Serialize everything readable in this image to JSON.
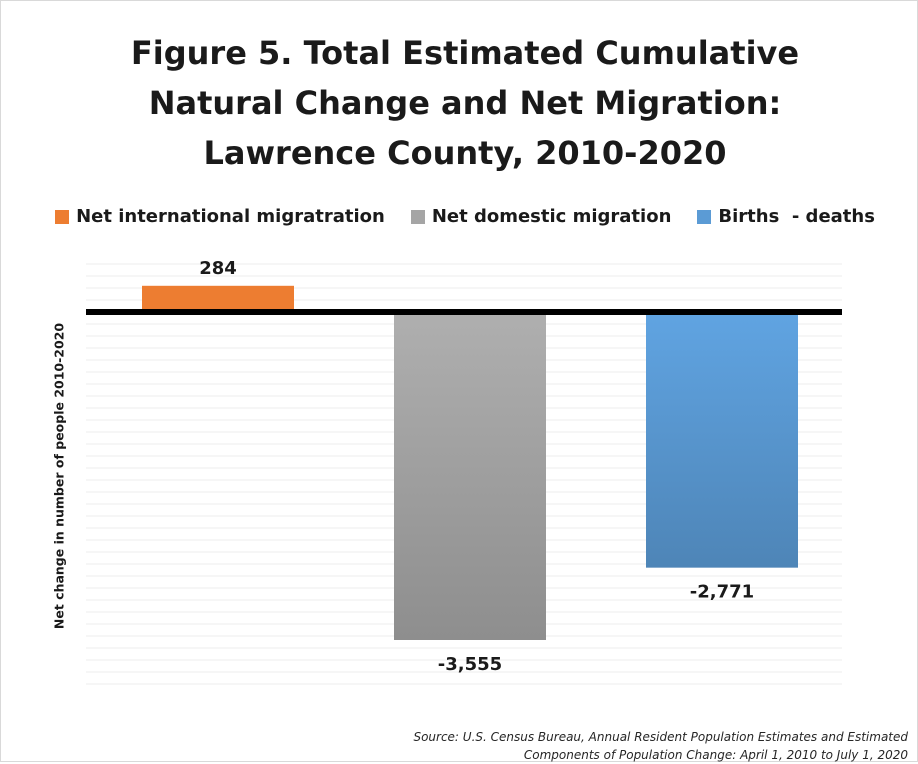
{
  "chart_data": {
    "type": "bar",
    "title_lines": [
      "Figure 5. Total Estimated Cumulative",
      "Natural Change and Net Migration:",
      "Lawrence County, 2010-2020"
    ],
    "ylabel": "Net change in number of people 2010-2020",
    "xlabel": "",
    "ylim": [
      -4000,
      500
    ],
    "grid": true,
    "legend_position": "top",
    "series": [
      {
        "name": "Net international migratration",
        "value": 284,
        "label": "284",
        "color": "#ED7D31"
      },
      {
        "name": "Net domestic migration",
        "value": -3555,
        "label": "-3,555",
        "color": "#A5A5A5"
      },
      {
        "name": "Births  - deaths",
        "value": -2771,
        "label": "-2,771",
        "color": "#5B9BD5"
      }
    ]
  },
  "source": {
    "line1": "Source: U.S. Census Bureau, Annual Resident Population Estimates and Estimated",
    "line2": "Components of Population Change: April 1, 2010 to July 1, 2020"
  }
}
